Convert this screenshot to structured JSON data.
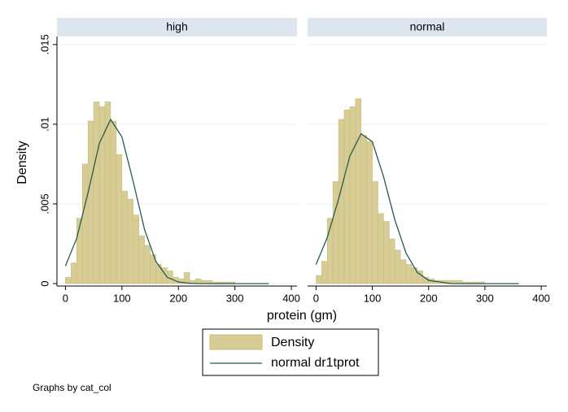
{
  "chart_data": [
    {
      "type": "histogram",
      "title": "high",
      "bins": [
        0,
        10,
        20,
        30,
        40,
        50,
        60,
        70,
        80,
        90,
        100,
        110,
        120,
        130,
        140,
        150,
        160,
        170,
        180,
        190,
        200,
        210,
        220,
        230,
        240,
        250,
        260,
        270,
        280,
        290,
        300
      ],
      "values": [
        0.0004,
        0.0013,
        0.0041,
        0.0075,
        0.0102,
        0.0114,
        0.0111,
        0.0114,
        0.0102,
        0.0081,
        0.0058,
        0.0053,
        0.0043,
        0.003,
        0.0024,
        0.0018,
        0.0012,
        0.001,
        0.0008,
        0.0004,
        0.0003,
        0.0007,
        0.0002,
        0.0003,
        0.0002,
        0.0002,
        0.0001,
        0.0001,
        0.0001,
        0.0001
      ],
      "curve": {
        "x": [
          0,
          20,
          40,
          60,
          80,
          100,
          120,
          140,
          160,
          180,
          200,
          220,
          240,
          260,
          280,
          300,
          320,
          340,
          360
        ],
        "values": [
          0.0011,
          0.00285,
          0.0057,
          0.0088,
          0.0103,
          0.0092,
          0.0064,
          0.0034,
          0.0014,
          0.0004,
          0.0001,
          2e-05,
          0,
          0,
          0,
          0,
          0,
          0,
          0
        ]
      },
      "xlim": [
        -15,
        410
      ],
      "xticks": [
        0,
        100,
        200,
        300,
        400
      ],
      "ylim": [
        0,
        0.0155
      ],
      "yticks": [
        0,
        {
          "value": 0.005,
          "label": ".005"
        },
        {
          "value": 0.01,
          "label": ".01"
        },
        {
          "value": 0.015,
          "label": ".015"
        }
      ],
      "grid": true,
      "ylabel": "Density",
      "xlabel": "protein (gm)"
    },
    {
      "type": "histogram",
      "title": "normal",
      "bins": [
        0,
        10,
        20,
        30,
        40,
        50,
        60,
        70,
        80,
        90,
        100,
        110,
        120,
        130,
        140,
        150,
        160,
        170,
        180,
        190,
        200,
        210,
        220,
        230,
        240,
        250,
        260,
        270,
        280,
        290,
        300
      ],
      "values": [
        0.0005,
        0.0014,
        0.0041,
        0.0064,
        0.0103,
        0.0109,
        0.0111,
        0.0116,
        0.0093,
        0.0089,
        0.0064,
        0.0044,
        0.0039,
        0.0028,
        0.0021,
        0.0015,
        0.0012,
        0.001,
        0.0008,
        0.0004,
        0.0003,
        0.0002,
        0.0002,
        0.0002,
        0.0002,
        0.0002,
        0.0001,
        0.0001,
        0.0001,
        0.0001
      ],
      "curve": {
        "x": [
          0,
          20,
          40,
          60,
          80,
          100,
          120,
          140,
          160,
          180,
          200,
          220,
          240,
          260,
          280,
          300,
          320,
          340,
          360
        ],
        "values": [
          0.0012,
          0.0029,
          0.0053,
          0.008,
          0.0094,
          0.0089,
          0.0067,
          0.004,
          0.0019,
          0.0007,
          0.0002,
          0.0001,
          0,
          0,
          0,
          0,
          0,
          0,
          0
        ]
      },
      "xlim": [
        -15,
        410
      ],
      "xticks": [
        0,
        100,
        200,
        300,
        400
      ],
      "ylim": [
        0,
        0.0155
      ],
      "yticks": [
        0,
        {
          "value": 0.005,
          "label": ".005"
        },
        {
          "value": 0.01,
          "label": ".01"
        },
        {
          "value": 0.015,
          "label": ".015"
        }
      ],
      "grid": true
    }
  ],
  "legend": [
    {
      "label": "Density",
      "color": "#d7cc93"
    },
    {
      "label": "normal dr1tprot",
      "color": "#255c52"
    }
  ],
  "note": "Graphs by cat_col"
}
